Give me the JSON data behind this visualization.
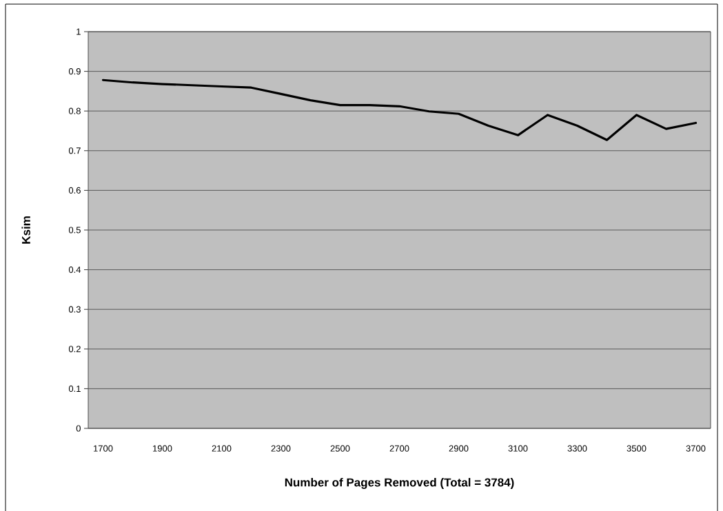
{
  "chart_data": {
    "type": "line",
    "xlabel": "Number of Pages Removed (Total = 3784)",
    "ylabel": "Ksim",
    "categories": [
      "1700",
      null,
      "1900",
      null,
      "2100",
      null,
      "2300",
      null,
      "2500",
      null,
      "2700",
      null,
      "2900",
      null,
      "3100",
      null,
      "3300",
      null,
      "3500",
      null,
      "3700"
    ],
    "series": [
      {
        "color": "#000000",
        "values": [
          0.878,
          0.872,
          0.868,
          0.865,
          0.862,
          0.859,
          0.843,
          0.827,
          0.815,
          0.815,
          0.812,
          0.799,
          0.793,
          0.763,
          0.739,
          0.79,
          0.763,
          0.727,
          0.79,
          0.755,
          0.77
        ]
      }
    ],
    "ylim": [
      0,
      1
    ],
    "yticks": [
      0,
      0.1,
      0.2,
      0.3,
      0.4,
      0.5,
      0.6,
      0.7,
      0.8,
      0.9,
      1
    ],
    "grid": "y",
    "marker": "none",
    "line_style": "solid"
  }
}
